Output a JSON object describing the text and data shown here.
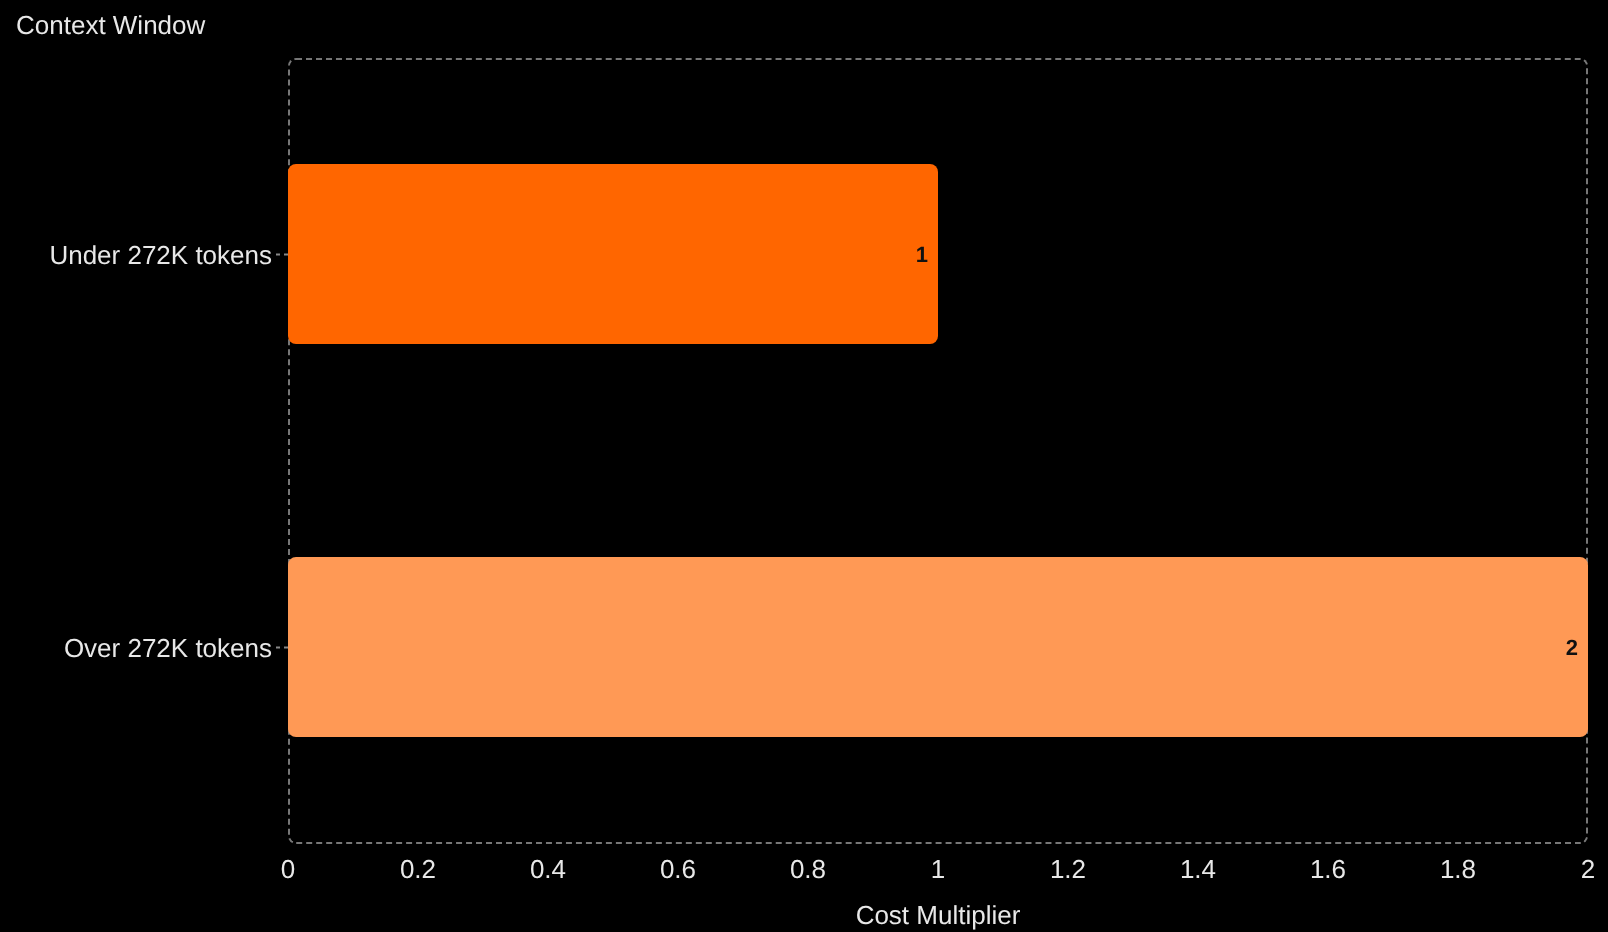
{
  "chart_data": {
    "type": "bar",
    "orientation": "horizontal",
    "ylabel": "Context Window",
    "xlabel": "Cost Multiplier",
    "categories": [
      "Under 272K tokens",
      "Over 272K tokens"
    ],
    "values": [
      1,
      2
    ],
    "colors": [
      "#ff6600",
      "#ff9955"
    ],
    "xlim": [
      0,
      2
    ],
    "xticks": [
      0,
      0.2,
      0.4,
      0.6,
      0.8,
      1,
      1.2,
      1.4,
      1.6,
      1.8,
      2
    ],
    "data_labels": true,
    "grid": false,
    "legend": false
  }
}
